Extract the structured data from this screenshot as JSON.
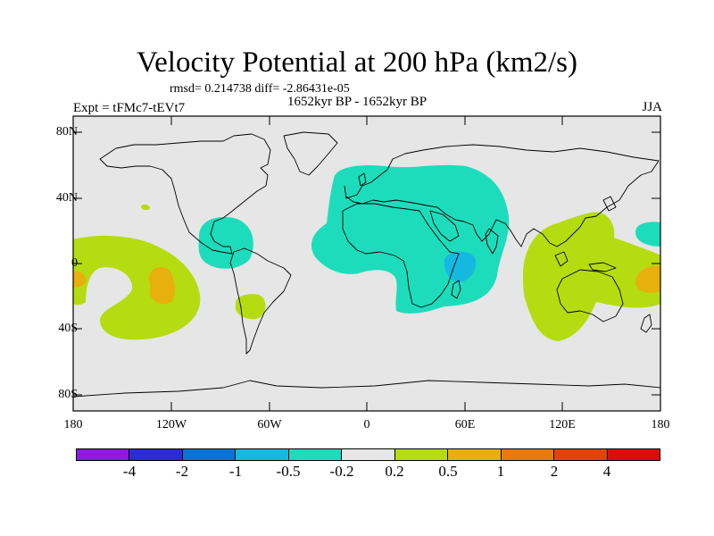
{
  "plot": {
    "title": "Velocity Potential at 200 hPa (km2/s)",
    "stats": "rmsd= 0.214738 diff= -2.86431e-05",
    "experiment": "Expt = tFMc7-tEVt7",
    "period": "1652kyr BP - 1652kyr BP",
    "season": "JJA"
  },
  "axes": {
    "lat_labels": [
      "80N",
      "40N",
      "0",
      "40S",
      "80S"
    ],
    "lon_labels": [
      "180",
      "120W",
      "60W",
      "0",
      "60E",
      "120E",
      "180"
    ]
  },
  "legend": {
    "labels": [
      "-4",
      "-2",
      "-1",
      "-0.5",
      "-0.2",
      "0.2",
      "0.5",
      "1",
      "2",
      "4"
    ],
    "colors": [
      "#8f19e0",
      "#2b2bd8",
      "#0a72d6",
      "#14b9df",
      "#1ddcbc",
      "#e6e6e6",
      "#b5dc10",
      "#e7b00c",
      "#ea7a0c",
      "#e4420a",
      "#e00b0b"
    ]
  },
  "colors": {
    "background": "#e6e6e6",
    "negative_fill": "#1ddcbc",
    "negative_core": "#14b9df",
    "positive_fill": "#b5dc10",
    "positive_core": "#e7b00c"
  }
}
